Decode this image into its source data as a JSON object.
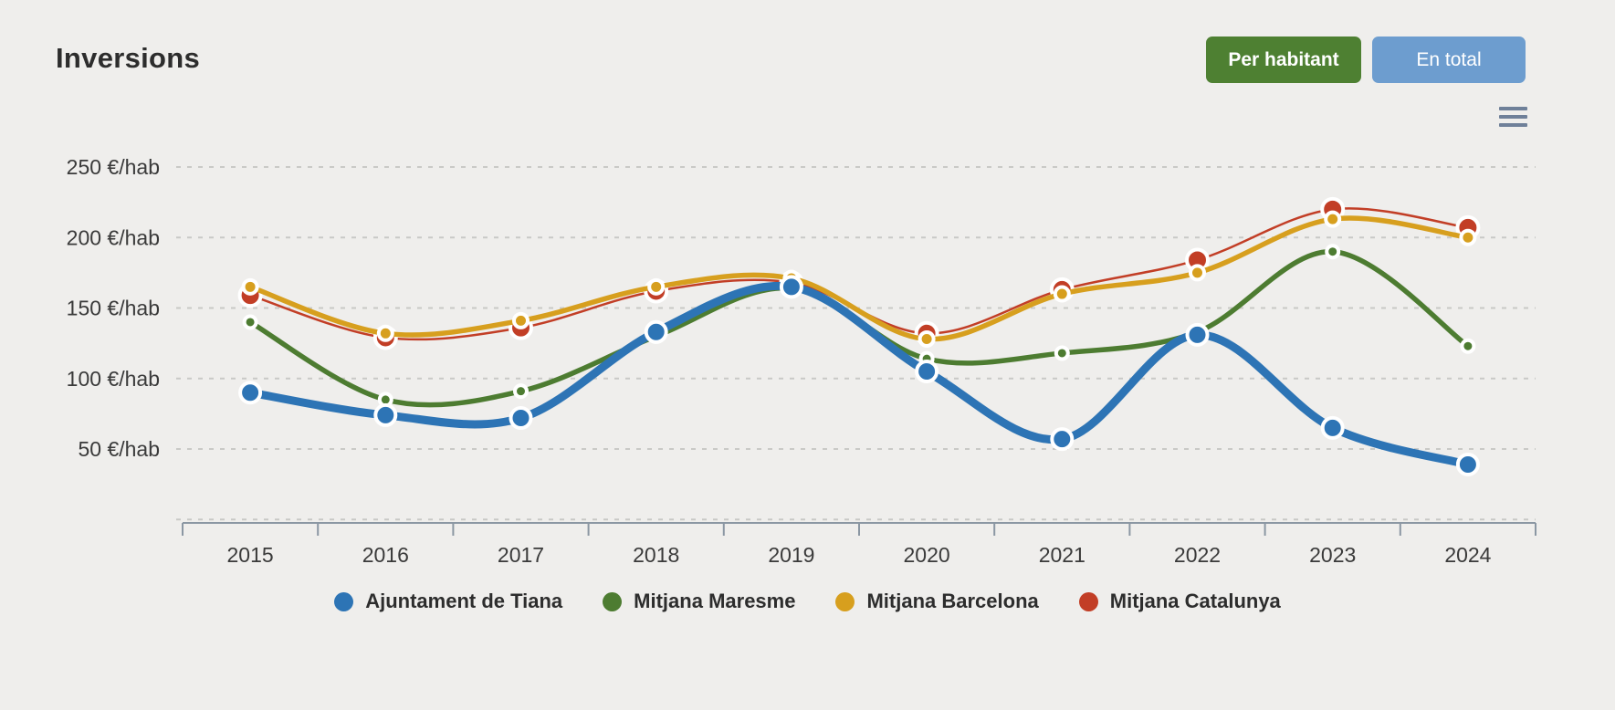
{
  "header": {
    "title": "Inversions"
  },
  "toolbar": {
    "per_habitant_label": "Per habitant",
    "en_total_label": "En total",
    "menu_icon": "hamburger-icon"
  },
  "colors": {
    "background": "#efeeec",
    "button_green": "#4e8032",
    "button_blue": "#6d9dcf",
    "grid": "#c9c9c6",
    "axis": "#8b97a3",
    "text": "#2d2d2d"
  },
  "chart_data": {
    "type": "line",
    "title": "Inversions",
    "categories": [
      "2015",
      "2016",
      "2017",
      "2018",
      "2019",
      "2020",
      "2021",
      "2022",
      "2023",
      "2024"
    ],
    "xlabel": "",
    "ylabel": "",
    "y_unit": "€/hab",
    "y_ticks": [
      250,
      200,
      150,
      100,
      50
    ],
    "ylim": [
      0,
      250
    ],
    "grid": "dashed-horizontal",
    "legend_position": "bottom",
    "curve": "spline",
    "series": [
      {
        "name": "Ajuntament de Tiana",
        "color": "#2d74b5",
        "line_width": 9,
        "marker_radius": 11,
        "values": [
          90,
          74,
          72,
          133,
          165,
          105,
          57,
          131,
          65,
          39
        ]
      },
      {
        "name": "Mitjana Maresme",
        "color": "#4d7c31",
        "line_width": 5.5,
        "marker_radius": 6.5,
        "values": [
          140,
          85,
          91,
          130,
          164,
          114,
          118,
          133,
          190,
          123
        ]
      },
      {
        "name": "Mitjana Barcelona",
        "color": "#d79f1e",
        "line_width": 5.5,
        "marker_radius": 7.5,
        "values": [
          165,
          132,
          141,
          165,
          171,
          128,
          160,
          175,
          213,
          200
        ]
      },
      {
        "name": "Mitjana Catalunya",
        "color": "#c23e26",
        "line_width": 2.5,
        "marker_radius": 11.5,
        "values": [
          159,
          129,
          136,
          162,
          168,
          132,
          163,
          184,
          220,
          207
        ]
      }
    ]
  }
}
